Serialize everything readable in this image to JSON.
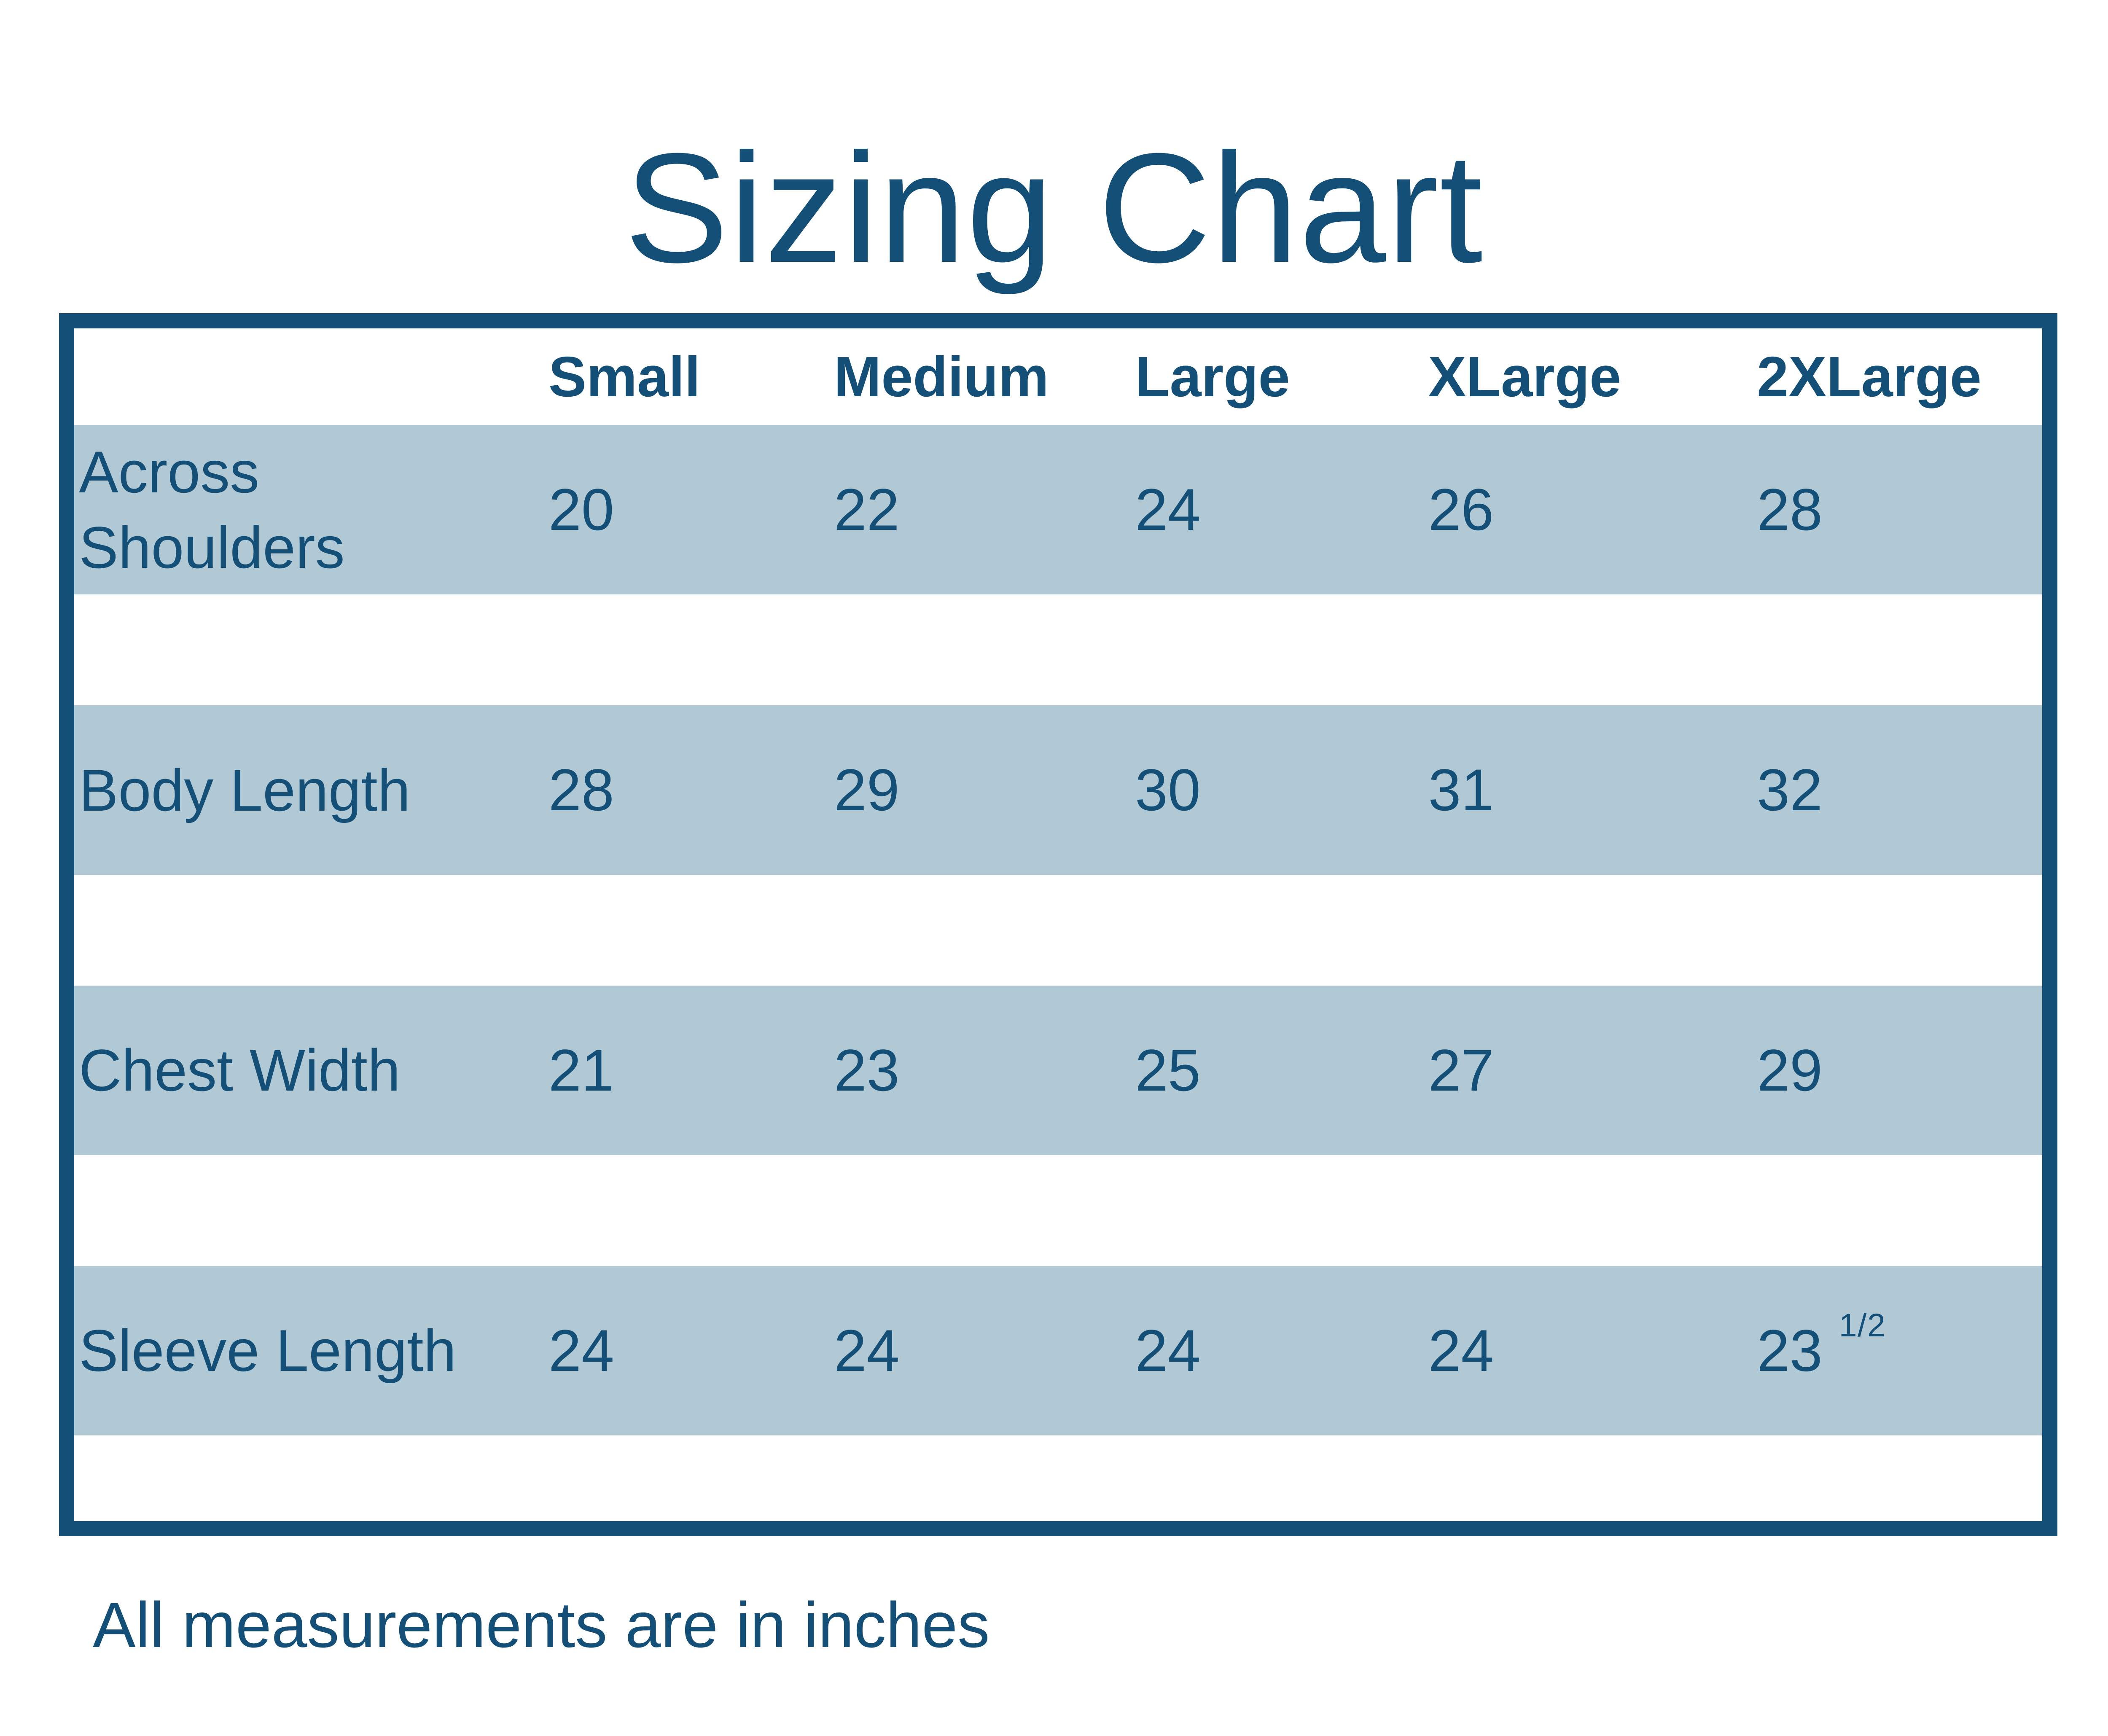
{
  "page": {
    "title": "Sizing Chart"
  },
  "colors": {
    "accent": "#134F77",
    "band": "#B0C9D5",
    "background": "#FFFFFF"
  },
  "chart_data": {
    "type": "table",
    "title": "Sizing Chart",
    "columns": [
      "",
      "Small",
      "Medium",
      "Large",
      "XLarge",
      "2XLarge"
    ],
    "rows": [
      {
        "label": "Across Shoulders",
        "values": [
          "20",
          "22",
          "24",
          "26",
          "28"
        ]
      },
      {
        "label": "Body Length",
        "values": [
          "28",
          "29",
          "30",
          "31",
          "32"
        ]
      },
      {
        "label": "Chest Width",
        "values": [
          "21",
          "23",
          "25",
          "27",
          "29"
        ]
      },
      {
        "label": "Sleeve Length",
        "values": [
          "24",
          "24",
          "24",
          "24",
          "23 1/2"
        ]
      }
    ],
    "note": "All measurements are in inches",
    "layout": {
      "grid": "off",
      "row_banding": "alternating light blue bands separated by white gaps",
      "border": "thick solid accent frame around table"
    }
  }
}
